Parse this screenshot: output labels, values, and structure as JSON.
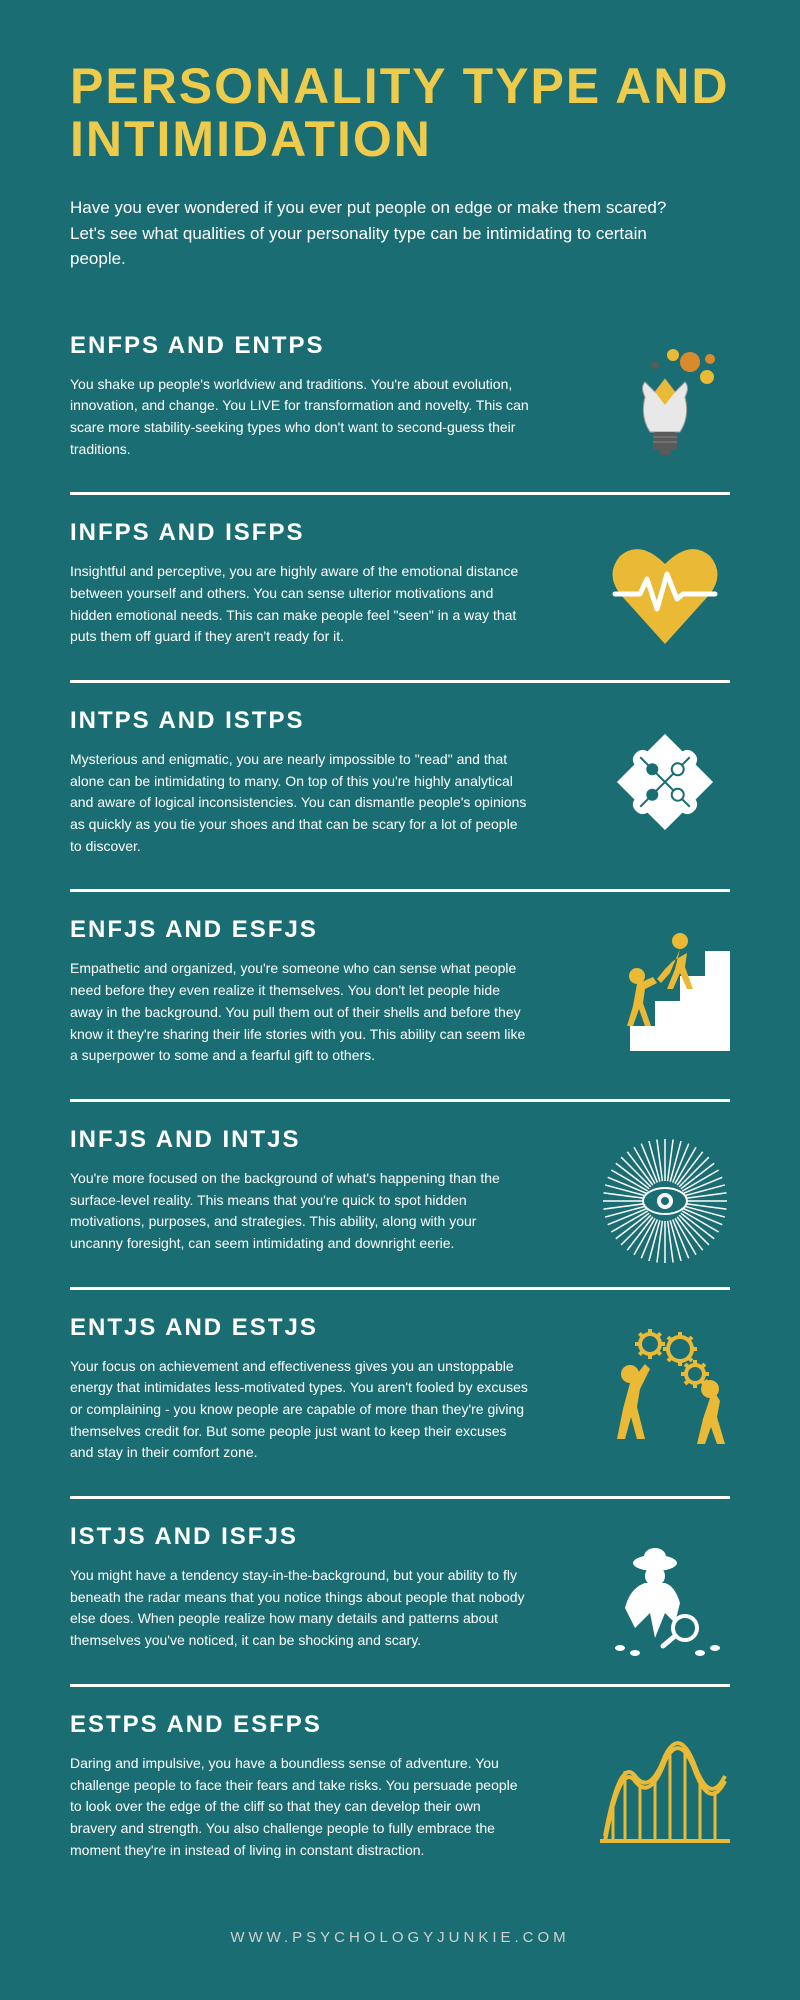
{
  "title": "PERSONALITY TYPE AND INTIMIDATION",
  "intro": "Have you ever wondered if you ever put people on edge or make them scared? Let's see what qualities of your personality type can be intimidating to certain people.",
  "colors": {
    "background": "#1a6e73",
    "title_color": "#eecb4b",
    "text_color": "#ffffff",
    "divider_color": "#ffffff",
    "icon_accent": "#eab936",
    "icon_accent2": "#d98a2b",
    "icon_white": "#ffffff",
    "icon_dark": "#5a5a5a"
  },
  "sections": [
    {
      "title": "ENFPS AND ENTPS",
      "icon": "lightbulb-burst-icon",
      "body": "You shake up people's worldview and traditions. You're about evolution, innovation, and change. You LIVE for transformation and novelty. This can scare more stability-seeking types who don't want to second-guess their traditions."
    },
    {
      "title": "INFPS AND ISFPS",
      "icon": "heart-pulse-icon",
      "body": "Insightful and perceptive, you are highly aware of the emotional distance between yourself and others. You can sense ulterior motivations and hidden emotional needs. This can make people feel \"seen\" in a way that puts them off guard if they aren't ready for it."
    },
    {
      "title": "INTPS AND ISTPS",
      "icon": "puzzle-pieces-icon",
      "body": "Mysterious and enigmatic, you are nearly impossible to \"read\" and that alone can be intimidating to many. On top of this you're highly analytical and aware of logical inconsistencies. You can dismantle people's opinions as quickly as you tie your shoes and that can be scary for a lot of people to discover."
    },
    {
      "title": "ENFJS AND ESFJS",
      "icon": "helping-stairs-icon",
      "body": "Empathetic and organized, you're someone who can sense what people need before they even realize it themselves. You don't let people hide away in the background. You pull them out of their shells and before they know it they're sharing their life stories with you. This ability can seem like a superpower to some and a fearful gift to others."
    },
    {
      "title": "INFJS AND INTJS",
      "icon": "eye-burst-icon",
      "body": "You're more focused on the background of what's happening than the surface-level reality. This means that you're quick to spot hidden motivations, purposes, and strategies. This ability, along with your uncanny foresight, can seem intimidating and downright eerie."
    },
    {
      "title": "ENTJS AND ESTJS",
      "icon": "teamwork-gears-icon",
      "body": "Your focus on achievement and effectiveness gives you an unstoppable energy that intimidates less-motivated types. You aren't fooled by excuses or complaining - you know people are capable of more than they're giving themselves credit for. But some people just want to keep their excuses and stay in their comfort zone."
    },
    {
      "title": "ISTJS AND ISFJS",
      "icon": "detective-icon",
      "body": "You might have a tendency stay-in-the-background, but your ability to fly beneath the radar means that you notice things about people that nobody else does. When people realize how many details and patterns about themselves you've noticed, it can be shocking and scary."
    },
    {
      "title": "ESTPS AND ESFPS",
      "icon": "rollercoaster-icon",
      "body": "Daring and impulsive, you have a boundless sense of adventure. You challenge people to face their fears and take risks. You persuade people to look over the edge of the cliff so that they can develop their own bravery and strength. You also challenge people to fully embrace the moment they're in instead of living in constant distraction."
    }
  ],
  "footer": "WWW.PSYCHOLOGYJUNKIE.COM"
}
